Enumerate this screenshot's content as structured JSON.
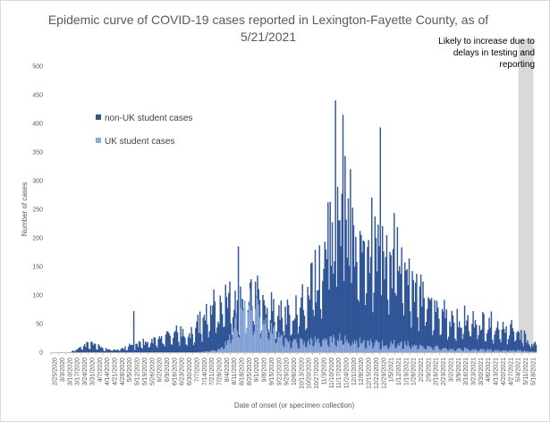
{
  "chart_data": {
    "type": "bar",
    "stacked": true,
    "title_lines": [
      "Epidemic curve of COVID-19 cases reported in Lexington-Fayette County, as of",
      "5/21/2021"
    ],
    "xlabel": "Date of onset (or specimen collection)",
    "ylabel": "Number of cases",
    "ylim": [
      0,
      500
    ],
    "yticks": [
      0,
      50,
      100,
      150,
      200,
      250,
      300,
      350,
      400,
      450,
      500
    ],
    "x_tick_labels": [
      "2/25/2020",
      "3/3/2020",
      "3/10/2020",
      "3/17/2020",
      "3/24/2020",
      "3/31/2020",
      "4/7/2020",
      "4/14/2020",
      "4/21/2020",
      "4/28/2020",
      "5/5/2020",
      "5/12/2020",
      "5/19/2020",
      "5/26/2020",
      "6/2/2020",
      "6/9/2020",
      "6/16/2020",
      "6/23/2020",
      "6/30/2020",
      "7/7/2020",
      "7/14/2020",
      "7/21/2020",
      "7/28/2020",
      "8/4/2020",
      "8/11/2020",
      "8/18/2020",
      "8/25/2020",
      "9/1/2020",
      "9/8/2020",
      "9/15/2020",
      "9/22/2020",
      "9/29/2020",
      "10/6/2020",
      "10/13/2020",
      "10/20/2020",
      "10/27/2020",
      "11/3/2020",
      "11/10/2020",
      "11/17/2020",
      "11/24/2020",
      "12/1/2020",
      "12/8/2020",
      "12/15/2020",
      "12/22/2020",
      "12/29/2020",
      "1/5/2021",
      "1/12/2021",
      "1/19/2021",
      "1/26/2021",
      "2/2/2021",
      "2/9/2021",
      "2/16/2021",
      "2/23/2021",
      "3/2/2021",
      "3/9/2021",
      "3/16/2021",
      "3/23/2021",
      "3/30/2021",
      "4/6/2021",
      "4/13/2021",
      "4/20/2021",
      "4/27/2021",
      "5/4/2021",
      "5/11/2021",
      "5/18/2021"
    ],
    "series": [
      {
        "name": "non-UK student cases",
        "color": "#2F5597",
        "weekly_total_values": [
          0,
          1,
          2,
          5,
          12,
          15,
          8,
          5,
          4,
          6,
          10,
          12,
          18,
          20,
          20,
          25,
          30,
          35,
          30,
          45,
          55,
          65,
          75,
          80,
          95,
          80,
          90,
          95,
          80,
          65,
          60,
          58,
          65,
          80,
          100,
          140,
          160,
          185,
          200,
          240,
          195,
          185,
          175,
          180,
          165,
          170,
          150,
          125,
          115,
          100,
          80,
          70,
          60,
          55,
          52,
          50,
          48,
          45,
          45,
          42,
          40,
          38,
          30,
          25,
          15
        ]
      },
      {
        "name": "UK student cases",
        "color": "#8EA9DB",
        "weekly_values": [
          0,
          0,
          0,
          0,
          0,
          0,
          0,
          0,
          0,
          0,
          0,
          0,
          0,
          0,
          0,
          0,
          0,
          0,
          0,
          0,
          1,
          2,
          5,
          15,
          40,
          70,
          75,
          65,
          45,
          30,
          22,
          18,
          15,
          15,
          15,
          18,
          20,
          22,
          22,
          22,
          16,
          15,
          15,
          15,
          12,
          12,
          12,
          12,
          10,
          10,
          8,
          8,
          6,
          5,
          5,
          5,
          4,
          4,
          4,
          3,
          3,
          3,
          3,
          2,
          1
        ]
      }
    ],
    "notable_daily_peaks": [
      {
        "x": "11/10/2020",
        "y": 262
      },
      {
        "x": "11/17/2020",
        "y": 440
      },
      {
        "x": "11/24/2020",
        "y": 415
      },
      {
        "x": "12/1/2020",
        "y": 320
      },
      {
        "x": "12/29/2020",
        "y": 393
      },
      {
        "x": "8/18/2020",
        "y": 185
      },
      {
        "x": "5/12/2020",
        "y": 72
      }
    ],
    "annotation": "Likely to increase due to delays in testing and reporting",
    "annotation_lines": [
      "Likely to increase due to",
      "delays in testing and",
      "reporting"
    ],
    "shaded_region": {
      "start": "5/8/2021",
      "end": "5/21/2021",
      "color": "#D9D9D9"
    },
    "legend_position": "left-inside",
    "grid": false
  }
}
